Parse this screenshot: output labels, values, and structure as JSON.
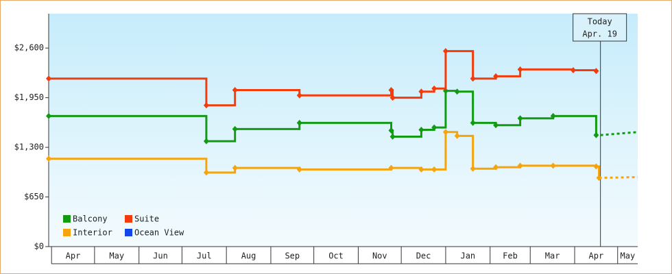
{
  "chart_data": {
    "type": "step-line",
    "xlim": [
      -2,
      409
    ],
    "ylim": [
      0,
      3050
    ],
    "yticks": [
      {
        "value": 0,
        "label": "$0"
      },
      {
        "value": 650,
        "label": "$650"
      },
      {
        "value": 1300,
        "label": "$1,300"
      },
      {
        "value": 1950,
        "label": "$1,950"
      },
      {
        "value": 2600,
        "label": "$2,600"
      }
    ],
    "xticks": [
      {
        "value": 0,
        "label": "Apr"
      },
      {
        "value": 30,
        "label": "May"
      },
      {
        "value": 61,
        "label": "Jun"
      },
      {
        "value": 91,
        "label": "Jul"
      },
      {
        "value": 122,
        "label": "Aug"
      },
      {
        "value": 153,
        "label": "Sep"
      },
      {
        "value": 183,
        "label": "Oct"
      },
      {
        "value": 214,
        "label": "Nov"
      },
      {
        "value": 244,
        "label": "Dec"
      },
      {
        "value": 275,
        "label": "Jan"
      },
      {
        "value": 306,
        "label": "Feb"
      },
      {
        "value": 334,
        "label": "Mar"
      },
      {
        "value": 365,
        "label": "Apr"
      },
      {
        "value": 395,
        "label": "May"
      }
    ],
    "today": {
      "x": 383,
      "label": [
        "Today",
        "Apr. 19"
      ]
    },
    "series": [
      {
        "name": "Balcony",
        "color": "#139a13",
        "x": [
          -2,
          108,
          128,
          173,
          237,
          238,
          258,
          267,
          275,
          283,
          294,
          310,
          327,
          350,
          380
        ],
        "values": [
          1710,
          1380,
          1540,
          1620,
          1520,
          1440,
          1530,
          1560,
          2040,
          2030,
          1620,
          1590,
          1680,
          1710,
          1460
        ],
        "forecast_x": [
          383,
          409
        ],
        "forecast_values": [
          1460,
          1500
        ]
      },
      {
        "name": "Suite",
        "color": "#f23c0c",
        "x": [
          -2,
          108,
          128,
          173,
          237,
          238,
          258,
          267,
          275,
          294,
          310,
          327,
          364,
          380
        ],
        "values": [
          2200,
          1850,
          2050,
          1980,
          2050,
          1950,
          2030,
          2070,
          2560,
          2200,
          2230,
          2320,
          2310,
          2300
        ]
      },
      {
        "name": "Interior",
        "color": "#f5a40e",
        "x": [
          -2,
          108,
          128,
          173,
          237,
          258,
          267,
          275,
          283,
          294,
          310,
          327,
          350,
          380,
          382
        ],
        "values": [
          1150,
          970,
          1030,
          1010,
          1030,
          1010,
          1010,
          1500,
          1450,
          1020,
          1040,
          1060,
          1060,
          1050,
          900
        ],
        "forecast_x": [
          382,
          409
        ],
        "forecast_values": [
          900,
          910
        ]
      },
      {
        "name": "Ocean View",
        "color": "#1445e8",
        "x": [],
        "values": []
      }
    ]
  }
}
